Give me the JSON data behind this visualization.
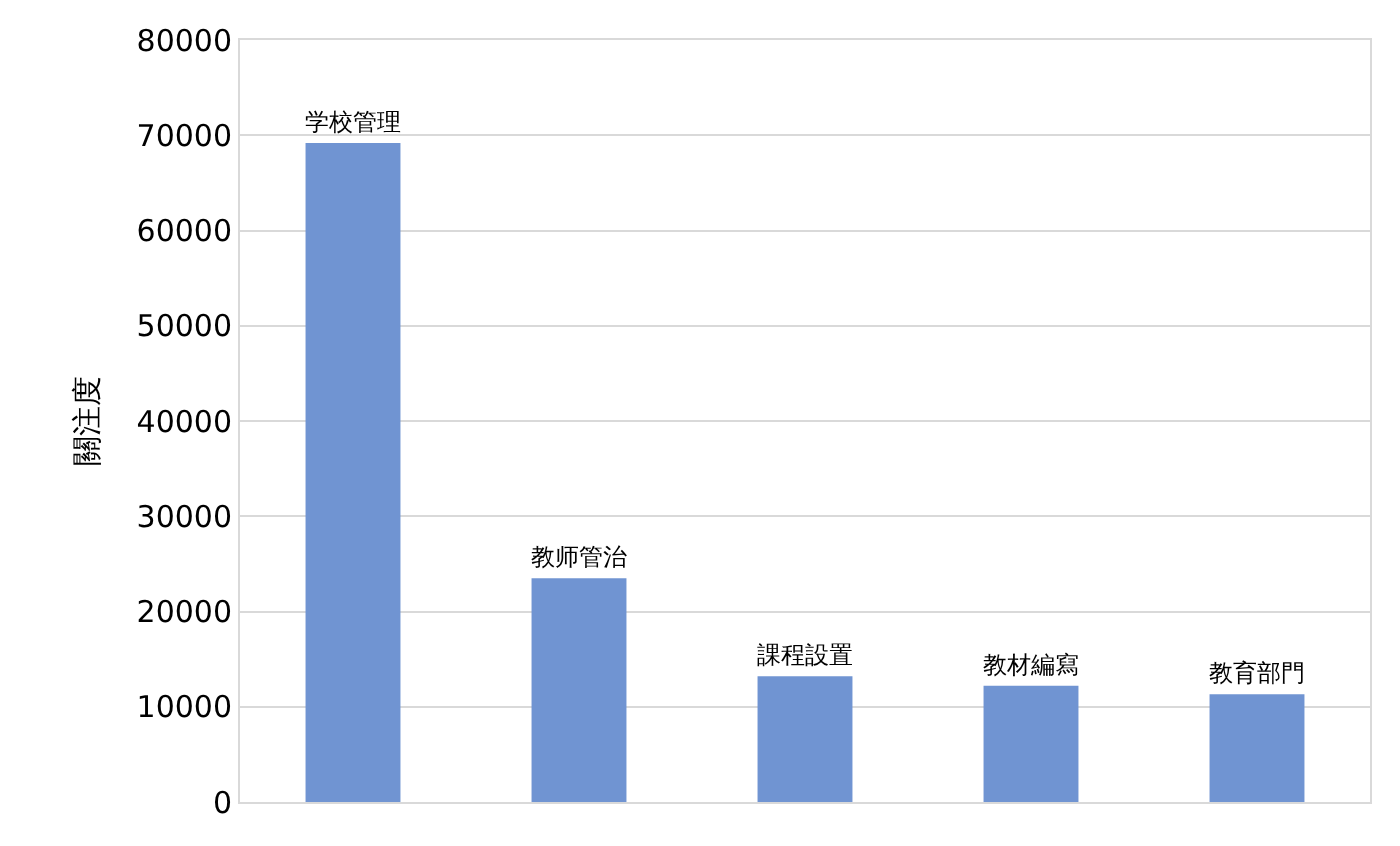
{
  "chart_data": {
    "type": "bar",
    "ylabel": "關注度",
    "categories": [
      "学校管理",
      "教师管治",
      "課程設置",
      "教材編寫",
      "教育部門"
    ],
    "values": [
      69200,
      23500,
      13200,
      12200,
      11300
    ],
    "color": "#7094d2",
    "ylim": [
      0,
      80000
    ],
    "yticks": [
      0,
      10000,
      20000,
      30000,
      40000,
      50000,
      60000,
      70000,
      80000
    ],
    "grid": "y"
  }
}
